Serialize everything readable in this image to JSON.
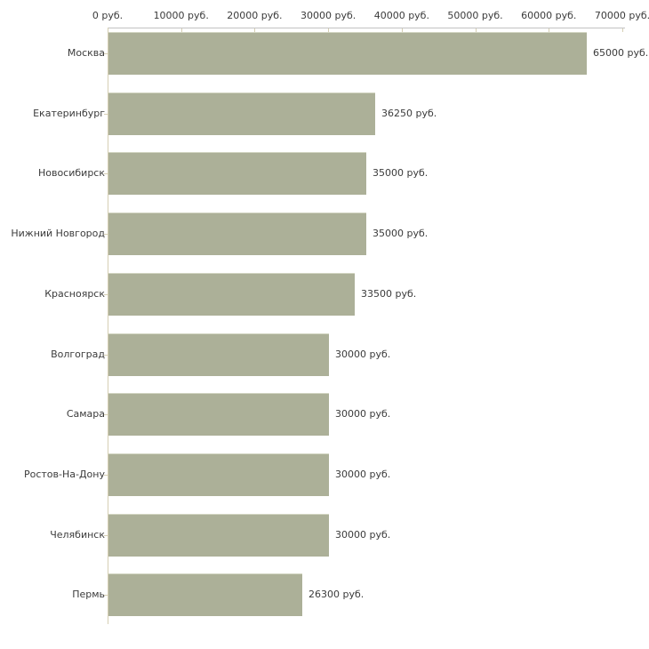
{
  "chart_data": {
    "type": "bar",
    "orientation": "horizontal",
    "title": "",
    "unit": "руб.",
    "categories": [
      "Москва",
      "Екатеринбург",
      "Новосибирск",
      "Нижний Новгород",
      "Красноярск",
      "Волгоград",
      "Самара",
      "Ростов-На-Дону",
      "Челябинск",
      "Пермь"
    ],
    "values": [
      65000,
      36250,
      35000,
      35000,
      33500,
      30000,
      30000,
      30000,
      30000,
      26300
    ],
    "value_labels": [
      "65000 руб.",
      "36250 руб.",
      "35000 руб.",
      "35000 руб.",
      "33500 руб.",
      "30000 руб.",
      "30000 руб.",
      "30000 руб.",
      "30000 руб.",
      "26300 руб."
    ],
    "x_ticks": [
      {
        "value": 0,
        "label": "0 руб."
      },
      {
        "value": 10000,
        "label": "10000 руб."
      },
      {
        "value": 20000,
        "label": "20000 руб."
      },
      {
        "value": 30000,
        "label": "30000 руб."
      },
      {
        "value": 40000,
        "label": "40000 руб."
      },
      {
        "value": 50000,
        "label": "50000 руб."
      },
      {
        "value": 60000,
        "label": "60000 руб."
      },
      {
        "value": 70000,
        "label": "70000 руб."
      }
    ],
    "xlim": [
      0,
      70000
    ],
    "grid": false,
    "legend": "none",
    "x_axis_position": "top"
  },
  "colors": {
    "background": "#ffffff",
    "bar_fill": "#acb098",
    "bar_top_edge": "#d2d5c2",
    "x_axis_line": "#c2c2c2",
    "y_axis_line": "#d6cfb4",
    "tick_mark": "#d6cfb4",
    "text": "#3b3b3b"
  }
}
